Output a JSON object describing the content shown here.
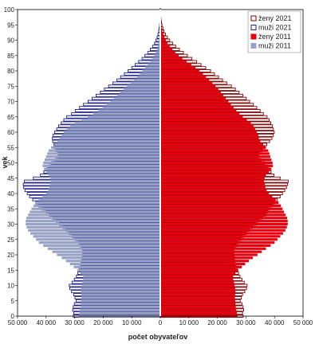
{
  "chart_data": {
    "type": "bar",
    "orientation": "horizontal",
    "title": "",
    "xlabel": "počet obyvateľov",
    "ylabel": "vek",
    "xlim": [
      -50000,
      50000
    ],
    "ylim": [
      0,
      100
    ],
    "x_ticks": [
      -50000,
      -40000,
      -30000,
      -20000,
      -10000,
      0,
      10000,
      20000,
      30000,
      40000,
      50000
    ],
    "x_tick_labels": [
      "50 000",
      "40 000",
      "30 000",
      "20 000",
      "10 000",
      "0",
      "10 000",
      "20 000",
      "30 000",
      "40 000",
      "50 000"
    ],
    "y_ticks": [
      0,
      5,
      10,
      15,
      20,
      25,
      30,
      35,
      40,
      45,
      50,
      55,
      60,
      65,
      70,
      75,
      80,
      85,
      90,
      95,
      100
    ],
    "y_tick_labels": [
      "0",
      "5",
      "10",
      "15",
      "20",
      "25",
      "30",
      "35",
      "40",
      "45",
      "50",
      "55",
      "60",
      "65",
      "70",
      "75",
      "80",
      "85",
      "90",
      "95",
      "100"
    ],
    "legend_position": "top-right",
    "grid": false,
    "ages": [
      0,
      1,
      2,
      3,
      4,
      5,
      6,
      7,
      8,
      9,
      10,
      11,
      12,
      13,
      14,
      15,
      16,
      17,
      18,
      19,
      20,
      21,
      22,
      23,
      24,
      25,
      26,
      27,
      28,
      29,
      30,
      31,
      32,
      33,
      34,
      35,
      36,
      37,
      38,
      39,
      40,
      41,
      42,
      43,
      44,
      45,
      46,
      47,
      48,
      49,
      50,
      51,
      52,
      53,
      54,
      55,
      56,
      57,
      58,
      59,
      60,
      61,
      62,
      63,
      64,
      65,
      66,
      67,
      68,
      69,
      70,
      71,
      72,
      73,
      74,
      75,
      76,
      77,
      78,
      79,
      80,
      81,
      82,
      83,
      84,
      85,
      86,
      87,
      88,
      89,
      90,
      91,
      92,
      93,
      94,
      95,
      96,
      97,
      98,
      99,
      100
    ],
    "series": [
      {
        "name": "ženy 2021",
        "side": "right",
        "fill": "#ffffff",
        "stroke": "#800000",
        "values": [
          29000,
          28800,
          29200,
          29000,
          28600,
          28000,
          28400,
          28800,
          29600,
          30200,
          30400,
          29400,
          28600,
          27900,
          27400,
          27000,
          26600,
          26300,
          26200,
          26000,
          25800,
          25700,
          25900,
          26600,
          27300,
          28300,
          29300,
          30200,
          31200,
          32300,
          33500,
          34600,
          35700,
          36800,
          37600,
          38200,
          39100,
          40000,
          41000,
          42000,
          42800,
          43600,
          44200,
          44600,
          44800,
          42000,
          39800,
          38800,
          38000,
          37400,
          36500,
          35300,
          34400,
          34800,
          35700,
          36600,
          37300,
          38300,
          39100,
          39600,
          39900,
          39600,
          39300,
          38700,
          38100,
          37400,
          36100,
          35000,
          33800,
          32600,
          31300,
          30100,
          28900,
          27600,
          26300,
          24900,
          23300,
          21800,
          20400,
          19000,
          17600,
          15900,
          14300,
          12700,
          11100,
          9500,
          8100,
          6700,
          5400,
          4300,
          3300,
          2500,
          1800,
          1300,
          900,
          600,
          400,
          250,
          150,
          100,
          50
        ]
      },
      {
        "name": "muži 2021",
        "side": "left",
        "fill": "#ffffff",
        "stroke": "#1f1f8a",
        "values": [
          30500,
          30300,
          30700,
          30500,
          30100,
          29500,
          29900,
          30300,
          31100,
          31700,
          31900,
          30900,
          30100,
          29400,
          28900,
          28500,
          28100,
          27800,
          27600,
          27400,
          27200,
          27100,
          27300,
          28000,
          28700,
          29700,
          30800,
          31800,
          32900,
          34000,
          35300,
          36500,
          37700,
          38900,
          40000,
          41300,
          42500,
          43600,
          44700,
          45800,
          46600,
          47400,
          47900,
          48000,
          47600,
          44500,
          42000,
          40800,
          39800,
          39000,
          38000,
          36700,
          35600,
          35800,
          36400,
          37000,
          37300,
          37700,
          37800,
          37600,
          37000,
          36300,
          35600,
          34700,
          33800,
          32800,
          31100,
          29800,
          28300,
          26900,
          25300,
          23900,
          22500,
          21000,
          19600,
          18100,
          16600,
          15200,
          13900,
          12600,
          11300,
          10000,
          8800,
          7600,
          6400,
          5400,
          4400,
          3500,
          2700,
          2000,
          1500,
          1100,
          800,
          550,
          380,
          250,
          160,
          100,
          60,
          40,
          20
        ]
      },
      {
        "name": "ženy 2011",
        "side": "right",
        "fill": "#e8000f",
        "stroke": "#e8000f",
        "values": [
          27000,
          26800,
          26600,
          26400,
          26300,
          26200,
          26100,
          26200,
          26300,
          26200,
          26000,
          25800,
          25500,
          25500,
          26300,
          27300,
          28500,
          29700,
          31000,
          32400,
          34000,
          35500,
          37000,
          38600,
          40000,
          41000,
          42000,
          43000,
          43800,
          44300,
          44600,
          44600,
          44400,
          43900,
          43300,
          42800,
          42200,
          41400,
          40400,
          39200,
          38000,
          37200,
          36800,
          36600,
          36300,
          36500,
          37000,
          38000,
          38900,
          39400,
          39300,
          38900,
          38500,
          38200,
          37800,
          37000,
          36000,
          35000,
          34500,
          34300,
          33800,
          33200,
          32600,
          31700,
          30300,
          28900,
          27700,
          26600,
          25600,
          24700,
          23800,
          22900,
          22000,
          21200,
          20300,
          19300,
          18200,
          17100,
          16000,
          14900,
          13700,
          12300,
          10800,
          9200,
          7700,
          6400,
          5200,
          4200,
          3300,
          2500,
          1900,
          1400,
          1000,
          700,
          450,
          300,
          200,
          120,
          70,
          40,
          20
        ]
      },
      {
        "name": "muži 2011",
        "side": "left",
        "fill": "#98a2c4",
        "stroke": "#98a2c4",
        "values": [
          28500,
          28300,
          28100,
          27900,
          27800,
          27700,
          27600,
          27700,
          27800,
          27700,
          27500,
          27300,
          27000,
          27000,
          28000,
          29000,
          30300,
          31600,
          33000,
          34500,
          36200,
          37800,
          39400,
          41000,
          42500,
          43500,
          44500,
          45500,
          46300,
          46800,
          47100,
          47100,
          46900,
          46300,
          45700,
          45100,
          44400,
          43600,
          42500,
          41200,
          40000,
          39200,
          38800,
          38600,
          38400,
          38500,
          39000,
          39900,
          40700,
          41200,
          41000,
          40500,
          40000,
          39600,
          39100,
          38200,
          37200,
          36000,
          35200,
          34600,
          33800,
          32700,
          31500,
          29800,
          27600,
          25400,
          23500,
          21700,
          20200,
          18800,
          17500,
          16300,
          15100,
          14000,
          12900,
          11700,
          10400,
          9300,
          8200,
          7200,
          6200,
          5200,
          4300,
          3400,
          2700,
          2100,
          1600,
          1200,
          900,
          650,
          450,
          300,
          200,
          130,
          80,
          50,
          30,
          20,
          10,
          5,
          3
        ]
      }
    ]
  }
}
